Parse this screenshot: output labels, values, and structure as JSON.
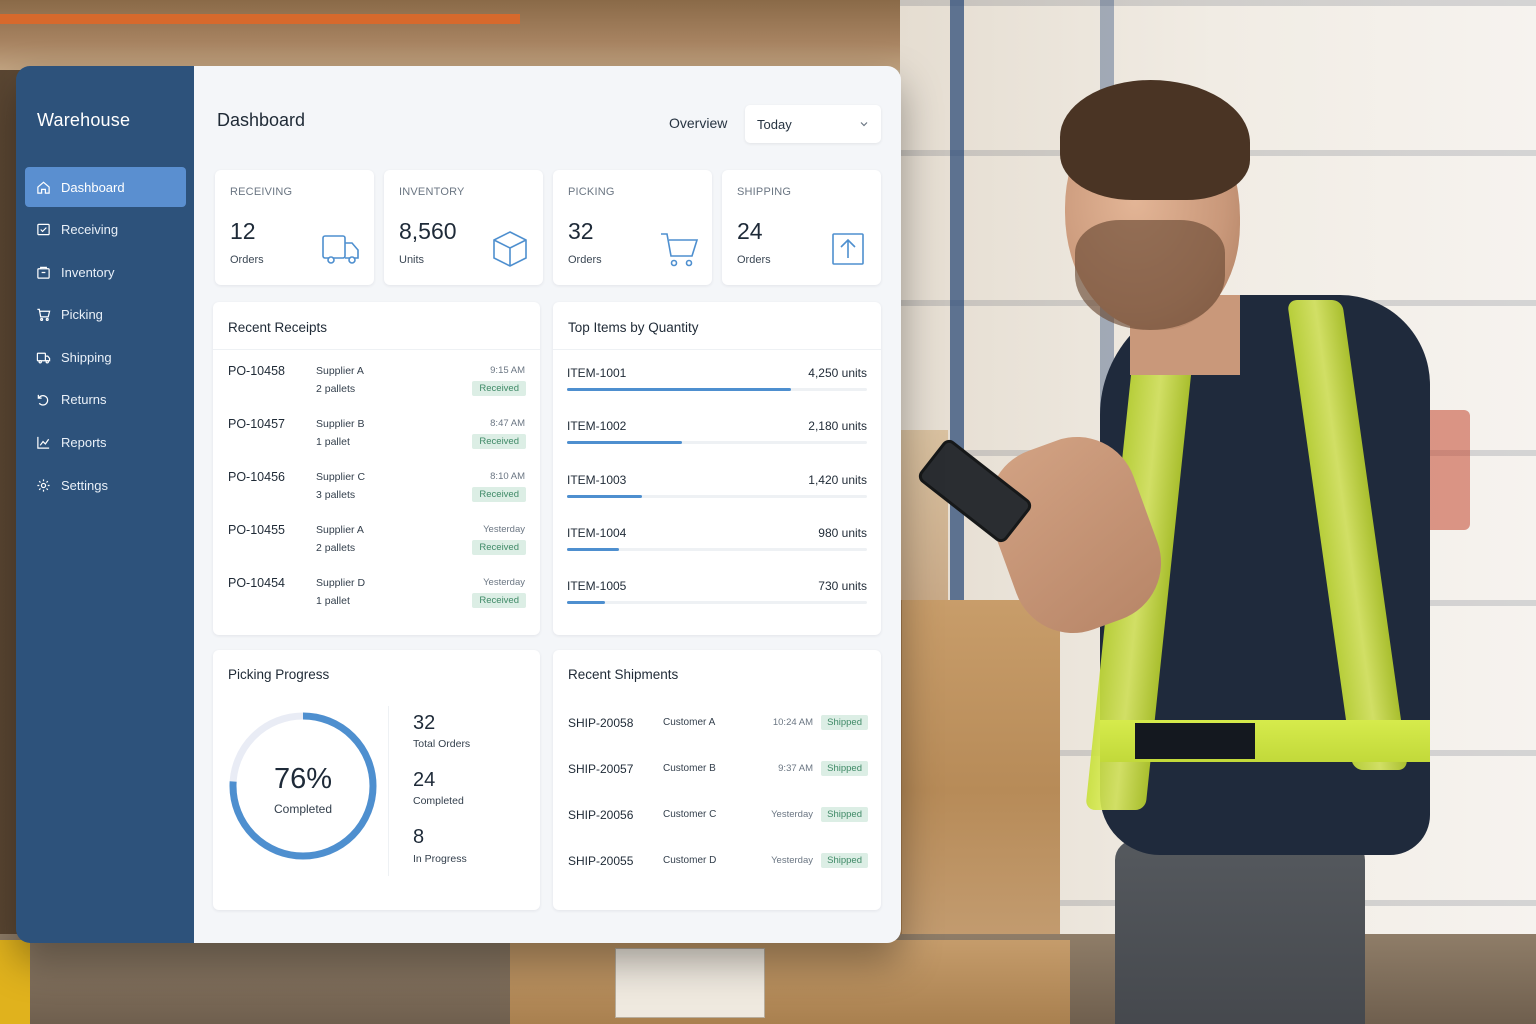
{
  "sidebar": {
    "title": "Warehouse",
    "items": [
      {
        "label": "Dashboard",
        "icon": "home-icon",
        "active": true
      },
      {
        "label": "Receiving",
        "icon": "receiving-icon",
        "active": false
      },
      {
        "label": "Inventory",
        "icon": "inventory-icon",
        "active": false
      },
      {
        "label": "Picking",
        "icon": "cart-icon",
        "active": false
      },
      {
        "label": "Shipping",
        "icon": "truck-icon",
        "active": false
      },
      {
        "label": "Returns",
        "icon": "return-icon",
        "active": false
      },
      {
        "label": "Reports",
        "icon": "chart-icon",
        "active": false
      },
      {
        "label": "Settings",
        "icon": "gear-icon",
        "active": false
      }
    ]
  },
  "header": {
    "title": "Dashboard",
    "overview_label": "Overview",
    "period_select": "Today"
  },
  "stats": [
    {
      "label": "RECEIVING",
      "value": "12",
      "sub": "Orders",
      "icon": "truck-icon"
    },
    {
      "label": "INVENTORY",
      "value": "8,560",
      "sub": "Units",
      "icon": "box-icon"
    },
    {
      "label": "PICKING",
      "value": "32",
      "sub": "Orders",
      "icon": "cart-icon"
    },
    {
      "label": "SHIPPING",
      "value": "24",
      "sub": "Orders",
      "icon": "upload-box-icon"
    }
  ],
  "receipts": {
    "title": "Recent Receipts",
    "rows": [
      {
        "po": "PO-10458",
        "supplier": "Supplier A",
        "qty": "2 pallets",
        "time": "9:15 AM",
        "status": "Received"
      },
      {
        "po": "PO-10457",
        "supplier": "Supplier B",
        "qty": "1 pallet",
        "time": "8:47 AM",
        "status": "Received"
      },
      {
        "po": "PO-10456",
        "supplier": "Supplier C",
        "qty": "3 pallets",
        "time": "8:10 AM",
        "status": "Received"
      },
      {
        "po": "PO-10455",
        "supplier": "Supplier A",
        "qty": "2 pallets",
        "time": "Yesterday",
        "status": "Received"
      },
      {
        "po": "PO-10454",
        "supplier": "Supplier D",
        "qty": "1 pallet",
        "time": "Yesterday",
        "status": "Received"
      }
    ]
  },
  "top_items": {
    "title": "Top Items by Quantity",
    "max_units": 5700,
    "rows": [
      {
        "item": "ITEM-1001",
        "units_label": "4,250 units",
        "units": 4250
      },
      {
        "item": "ITEM-1002",
        "units_label": "2,180 units",
        "units": 2180
      },
      {
        "item": "ITEM-1003",
        "units_label": "1,420 units",
        "units": 1420
      },
      {
        "item": "ITEM-1004",
        "units_label": "980 units",
        "units": 980
      },
      {
        "item": "ITEM-1005",
        "units_label": "730 units",
        "units": 730
      }
    ]
  },
  "picking": {
    "title": "Picking Progress",
    "percent_label": "76%",
    "percent": 76,
    "completed_label": "Completed",
    "stats": [
      {
        "value": "32",
        "label": "Total Orders"
      },
      {
        "value": "24",
        "label": "Completed"
      },
      {
        "value": "8",
        "label": "In Progress"
      }
    ]
  },
  "shipments": {
    "title": "Recent Shipments",
    "rows": [
      {
        "id": "SHIP-20058",
        "customer": "Customer A",
        "time": "10:24 AM",
        "status": "Shipped"
      },
      {
        "id": "SHIP-20057",
        "customer": "Customer B",
        "time": "9:37 AM",
        "status": "Shipped"
      },
      {
        "id": "SHIP-20056",
        "customer": "Customer C",
        "time": "Yesterday",
        "status": "Shipped"
      },
      {
        "id": "SHIP-20055",
        "customer": "Customer D",
        "time": "Yesterday",
        "status": "Shipped"
      }
    ]
  },
  "colors": {
    "sidebar_bg": "#2d527b",
    "sidebar_active": "#5a8fd0",
    "accent_blue": "#4e8fcf",
    "badge_bg": "#dceee5",
    "badge_text": "#3f8a67"
  }
}
